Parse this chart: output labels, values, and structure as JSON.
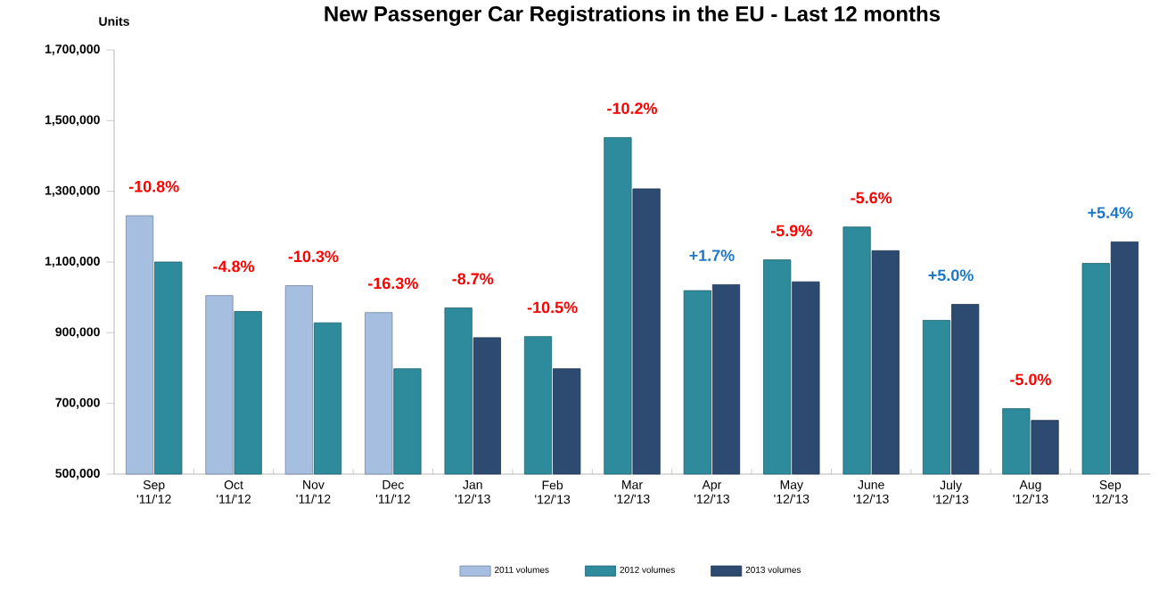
{
  "chart_data": {
    "type": "bar",
    "title": "New Passenger Car Registrations in the EU - Last 12 months",
    "ylabel": "Units",
    "categories": [
      "Sep '11/'12",
      "Oct '11/'12",
      "Nov '11/'12",
      "Dec '11/'12",
      "Jan '12/'13",
      "Feb '12/'13",
      "Mar '12/'13",
      "Apr '12/'13",
      "May '12/'13",
      "June '12/'13",
      "July '12/'13",
      "Aug '12/'13",
      "Sep '12/'13"
    ],
    "series": [
      {
        "name": "2011 volumes",
        "color": "#a6bfe0",
        "values": [
          1231000,
          1005000,
          1033000,
          957000,
          null,
          null,
          null,
          null,
          null,
          null,
          null,
          null,
          null
        ]
      },
      {
        "name": "2012 volumes",
        "color": "#2e8b9c",
        "values": [
          1100000,
          960000,
          928000,
          798000,
          970000,
          889000,
          1452000,
          1019000,
          1106000,
          1199000,
          935000,
          685000,
          1096000
        ]
      },
      {
        "name": "2013 volumes",
        "color": "#2d4a70",
        "values": [
          null,
          null,
          null,
          null,
          886000,
          798000,
          1307000,
          1036000,
          1044000,
          1132000,
          980000,
          652000,
          1157000
        ]
      }
    ],
    "ylim": [
      500000,
      1700000
    ],
    "yticks": [
      {
        "value": 500000,
        "label": "500,000"
      },
      {
        "value": 700000,
        "label": "700,000"
      },
      {
        "value": 900000,
        "label": "900,000"
      },
      {
        "value": 1100000,
        "label": "1,100,000"
      },
      {
        "value": 1300000,
        "label": "1,300,000"
      },
      {
        "value": 1500000,
        "label": "1,500,000"
      },
      {
        "value": 1700000,
        "label": "1,700,000"
      }
    ],
    "annotations": [
      {
        "text": "-10.8%",
        "x": "Sep '11/'12",
        "y": 1231000
      },
      {
        "text": "-4.8%",
        "x": "Oct '11/'12",
        "y": 1005000
      },
      {
        "text": "-10.3%",
        "x": "Nov '11/'12",
        "y": 1033000
      },
      {
        "text": "-16.3%",
        "x": "Dec '11/'12",
        "y": 957000
      },
      {
        "text": "-8.7%",
        "x": "Jan '12/'13",
        "y": 970000
      },
      {
        "text": "-10.5%",
        "x": "Feb '12/'13",
        "y": 889000
      },
      {
        "text": "-10.2%",
        "x": "Mar '12/'13",
        "y": 1452000
      },
      {
        "text": "+1.7%",
        "x": "Apr '12/'13",
        "y": 1036000
      },
      {
        "text": "-5.9%",
        "x": "May '12/'13",
        "y": 1106000
      },
      {
        "text": "-5.6%",
        "x": "June '12/'13",
        "y": 1199000
      },
      {
        "text": "+5.0%",
        "x": "July '12/'13",
        "y": 980000
      },
      {
        "text": "-5.0%",
        "x": "Aug '12/'13",
        "y": 685000
      },
      {
        "text": "+5.4%",
        "x": "Sep '12/'13",
        "y": 1157000
      }
    ],
    "legend": "bottom",
    "grid": false
  }
}
